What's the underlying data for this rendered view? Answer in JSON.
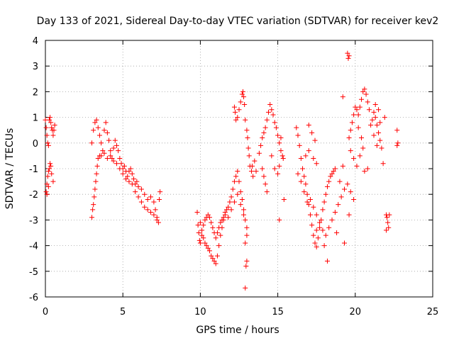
{
  "chart_data": {
    "type": "scatter",
    "title": "Day 133 of 2021, Sidereal Day-to-day VTEC variation (SDTVAR) for receiver kev2",
    "xlabel": "GPS time / hours",
    "ylabel": "SDTVAR / TECUs",
    "xlim": [
      0,
      25
    ],
    "ylim": [
      -6,
      4
    ],
    "xticks": [
      "0",
      "5",
      "10",
      "15",
      "20",
      "25"
    ],
    "yticks": [
      "-6",
      "-5",
      "-4",
      "-3",
      "-2",
      "-1",
      "0",
      "1",
      "2",
      "3",
      "4"
    ],
    "grid": true,
    "marker": "+",
    "color": "#ff0000",
    "series": [
      {
        "name": "SDTVAR",
        "points": [
          [
            0.0,
            0.9
          ],
          [
            0.05,
            0.6
          ],
          [
            0.1,
            0.3
          ],
          [
            0.15,
            0.0
          ],
          [
            0.2,
            -0.1
          ],
          [
            0.25,
            0.9
          ],
          [
            0.3,
            1.0
          ],
          [
            0.35,
            0.8
          ],
          [
            0.4,
            0.6
          ],
          [
            0.45,
            0.5
          ],
          [
            0.5,
            0.3
          ],
          [
            0.55,
            0.5
          ],
          [
            0.6,
            0.7
          ],
          [
            0.05,
            -1.9
          ],
          [
            0.1,
            -1.6
          ],
          [
            0.15,
            -1.3
          ],
          [
            0.2,
            -1.1
          ],
          [
            0.25,
            -1.0
          ],
          [
            0.3,
            -0.8
          ],
          [
            0.35,
            -0.9
          ],
          [
            0.4,
            -1.2
          ],
          [
            0.5,
            -1.5
          ],
          [
            0.1,
            -2.0
          ],
          [
            0.2,
            -1.7
          ],
          [
            3.0,
            0.0
          ],
          [
            3.1,
            0.5
          ],
          [
            3.2,
            0.8
          ],
          [
            3.3,
            0.9
          ],
          [
            3.4,
            0.6
          ],
          [
            3.5,
            0.3
          ],
          [
            3.6,
            0.0
          ],
          [
            3.7,
            -0.3
          ],
          [
            3.8,
            0.5
          ],
          [
            3.9,
            0.8
          ],
          [
            4.0,
            0.4
          ],
          [
            4.1,
            0.1
          ],
          [
            4.2,
            -0.3
          ],
          [
            4.3,
            -0.6
          ],
          [
            4.4,
            -0.2
          ],
          [
            4.5,
            0.1
          ],
          [
            4.6,
            -0.1
          ],
          [
            4.7,
            -0.3
          ],
          [
            4.8,
            -0.6
          ],
          [
            4.9,
            -0.8
          ],
          [
            5.0,
            -1.0
          ],
          [
            5.1,
            -0.9
          ],
          [
            5.2,
            -1.1
          ],
          [
            5.3,
            -1.3
          ],
          [
            5.4,
            -1.1
          ],
          [
            5.5,
            -1.0
          ],
          [
            5.6,
            -1.2
          ],
          [
            5.7,
            -1.4
          ],
          [
            5.8,
            -1.6
          ],
          [
            5.9,
            -1.5
          ],
          [
            6.0,
            -1.7
          ],
          [
            6.2,
            -1.8
          ],
          [
            6.4,
            -2.0
          ],
          [
            6.6,
            -2.2
          ],
          [
            6.8,
            -2.1
          ],
          [
            7.0,
            -2.3
          ],
          [
            7.1,
            -2.6
          ],
          [
            7.2,
            -2.9
          ],
          [
            7.3,
            -3.1
          ],
          [
            7.35,
            -2.2
          ],
          [
            7.4,
            -1.9
          ],
          [
            3.0,
            -2.9
          ],
          [
            3.05,
            -2.6
          ],
          [
            3.1,
            -2.4
          ],
          [
            3.15,
            -2.1
          ],
          [
            3.2,
            -1.8
          ],
          [
            3.25,
            -1.5
          ],
          [
            3.3,
            -1.2
          ],
          [
            3.35,
            -0.9
          ],
          [
            3.4,
            -0.6
          ],
          [
            3.5,
            -0.5
          ],
          [
            3.6,
            -0.5
          ],
          [
            3.8,
            -0.4
          ],
          [
            4.0,
            -0.6
          ],
          [
            4.2,
            -0.5
          ],
          [
            4.4,
            -0.7
          ],
          [
            4.6,
            -0.8
          ],
          [
            4.8,
            -1.0
          ],
          [
            5.0,
            -1.2
          ],
          [
            5.2,
            -1.4
          ],
          [
            5.4,
            -1.5
          ],
          [
            5.6,
            -1.6
          ],
          [
            5.8,
            -1.9
          ],
          [
            6.0,
            -2.1
          ],
          [
            6.2,
            -2.3
          ],
          [
            6.4,
            -2.5
          ],
          [
            6.6,
            -2.6
          ],
          [
            6.8,
            -2.7
          ],
          [
            7.0,
            -2.8
          ],
          [
            7.2,
            -3.0
          ],
          [
            9.8,
            -2.7
          ],
          [
            9.85,
            -3.2
          ],
          [
            9.9,
            -3.5
          ],
          [
            9.95,
            -3.8
          ],
          [
            10.0,
            -3.1
          ],
          [
            10.1,
            -3.4
          ],
          [
            10.2,
            -3.7
          ],
          [
            10.3,
            -3.9
          ],
          [
            10.4,
            -4.0
          ],
          [
            10.5,
            -4.1
          ],
          [
            10.6,
            -4.2
          ],
          [
            10.7,
            -4.4
          ],
          [
            10.8,
            -4.5
          ],
          [
            10.9,
            -4.6
          ],
          [
            11.0,
            -4.7
          ],
          [
            11.1,
            -4.4
          ],
          [
            11.2,
            -4.0
          ],
          [
            11.3,
            -3.6
          ],
          [
            11.4,
            -3.3
          ],
          [
            11.5,
            -3.0
          ],
          [
            11.6,
            -2.8
          ],
          [
            11.7,
            -2.6
          ],
          [
            11.8,
            -2.5
          ],
          [
            11.9,
            -2.3
          ],
          [
            12.0,
            -2.1
          ],
          [
            12.1,
            -1.8
          ],
          [
            12.2,
            -1.5
          ],
          [
            12.3,
            -1.3
          ],
          [
            12.4,
            -1.1
          ],
          [
            12.5,
            -1.5
          ],
          [
            12.6,
            -1.9
          ],
          [
            12.7,
            -2.2
          ],
          [
            12.8,
            -2.6
          ],
          [
            12.9,
            -3.0
          ],
          [
            13.0,
            -3.3
          ],
          [
            10.0,
            -3.9
          ],
          [
            10.1,
            -3.6
          ],
          [
            10.2,
            -3.2
          ],
          [
            10.3,
            -3.0
          ],
          [
            10.4,
            -2.9
          ],
          [
            10.5,
            -2.8
          ],
          [
            10.6,
            -2.9
          ],
          [
            10.7,
            -3.1
          ],
          [
            10.8,
            -3.3
          ],
          [
            10.9,
            -3.5
          ],
          [
            11.0,
            -3.7
          ],
          [
            11.1,
            -3.5
          ],
          [
            11.2,
            -3.3
          ],
          [
            11.3,
            -3.1
          ],
          [
            11.4,
            -3.0
          ],
          [
            11.5,
            -2.9
          ],
          [
            11.6,
            -2.7
          ],
          [
            11.8,
            -2.9
          ],
          [
            12.0,
            -2.6
          ],
          [
            12.2,
            -2.3
          ],
          [
            12.4,
            -2.0
          ],
          [
            12.6,
            -2.4
          ],
          [
            12.8,
            -2.8
          ],
          [
            12.9,
            -5.65
          ],
          [
            12.95,
            -4.8
          ],
          [
            13.0,
            -4.6
          ],
          [
            12.9,
            -3.9
          ],
          [
            13.0,
            -3.6
          ],
          [
            12.2,
            1.4
          ],
          [
            12.25,
            1.2
          ],
          [
            12.3,
            0.9
          ],
          [
            12.4,
            1.0
          ],
          [
            12.5,
            1.3
          ],
          [
            12.6,
            1.6
          ],
          [
            12.7,
            1.9
          ],
          [
            12.75,
            2.0
          ],
          [
            12.8,
            1.8
          ],
          [
            12.85,
            1.5
          ],
          [
            12.9,
            0.9
          ],
          [
            13.0,
            0.5
          ],
          [
            13.05,
            0.2
          ],
          [
            13.1,
            -0.2
          ],
          [
            13.15,
            -0.5
          ],
          [
            13.2,
            -0.9
          ],
          [
            13.3,
            -1.1
          ],
          [
            13.35,
            -0.9
          ],
          [
            13.4,
            -1.3
          ],
          [
            13.5,
            -0.7
          ],
          [
            13.6,
            -1.1
          ],
          [
            13.8,
            -0.4
          ],
          [
            13.9,
            -0.1
          ],
          [
            14.0,
            0.2
          ],
          [
            14.1,
            0.4
          ],
          [
            14.2,
            0.6
          ],
          [
            14.3,
            0.9
          ],
          [
            14.4,
            1.2
          ],
          [
            14.5,
            1.5
          ],
          [
            14.6,
            1.3
          ],
          [
            14.7,
            1.1
          ],
          [
            14.8,
            0.8
          ],
          [
            14.9,
            0.6
          ],
          [
            15.0,
            0.3
          ],
          [
            15.1,
            0.0
          ],
          [
            15.2,
            -0.3
          ],
          [
            15.3,
            -0.5
          ],
          [
            15.35,
            -0.6
          ],
          [
            14.0,
            -1.0
          ],
          [
            14.1,
            -1.3
          ],
          [
            14.2,
            -1.6
          ],
          [
            14.3,
            -1.9
          ],
          [
            14.6,
            -0.5
          ],
          [
            14.8,
            -1.0
          ],
          [
            15.0,
            -1.2
          ],
          [
            15.1,
            -0.9
          ],
          [
            15.2,
            0.2
          ],
          [
            15.4,
            -2.2
          ],
          [
            15.1,
            -3.0
          ],
          [
            16.2,
            0.6
          ],
          [
            16.3,
            0.3
          ],
          [
            16.4,
            -0.1
          ],
          [
            16.5,
            -0.6
          ],
          [
            16.6,
            -1.0
          ],
          [
            16.7,
            -1.3
          ],
          [
            16.8,
            -1.6
          ],
          [
            16.9,
            -2.0
          ],
          [
            17.0,
            -2.4
          ],
          [
            17.1,
            -2.8
          ],
          [
            17.2,
            -3.2
          ],
          [
            17.3,
            -3.6
          ],
          [
            17.4,
            -3.9
          ],
          [
            17.5,
            -4.05
          ],
          [
            17.6,
            -3.7
          ],
          [
            17.7,
            -3.3
          ],
          [
            17.8,
            -3.0
          ],
          [
            17.9,
            -2.6
          ],
          [
            18.0,
            -2.3
          ],
          [
            18.1,
            -2.0
          ],
          [
            18.2,
            -1.7
          ],
          [
            18.3,
            -1.5
          ],
          [
            18.4,
            -1.3
          ],
          [
            18.5,
            -1.2
          ],
          [
            18.6,
            -1.1
          ],
          [
            16.3,
            -1.2
          ],
          [
            16.5,
            -1.5
          ],
          [
            16.7,
            -1.9
          ],
          [
            16.9,
            -2.3
          ],
          [
            17.1,
            -2.2
          ],
          [
            17.3,
            -2.5
          ],
          [
            17.5,
            -2.8
          ],
          [
            17.7,
            -3.1
          ],
          [
            17.9,
            -3.4
          ],
          [
            18.1,
            -3.6
          ],
          [
            18.3,
            -3.3
          ],
          [
            18.5,
            -3.0
          ],
          [
            18.7,
            -2.7
          ],
          [
            18.9,
            -2.4
          ],
          [
            19.1,
            -2.1
          ],
          [
            19.3,
            -1.8
          ],
          [
            19.5,
            -1.6
          ],
          [
            19.7,
            -1.9
          ],
          [
            19.9,
            -2.2
          ],
          [
            18.2,
            -4.6
          ],
          [
            18.0,
            -4.0
          ],
          [
            17.5,
            -3.4
          ],
          [
            18.8,
            -3.5
          ],
          [
            19.3,
            -3.9
          ],
          [
            19.6,
            -2.8
          ],
          [
            19.0,
            -1.5
          ],
          [
            18.7,
            -1.0
          ],
          [
            19.2,
            -0.9
          ],
          [
            17.0,
            0.7
          ],
          [
            17.2,
            0.4
          ],
          [
            17.4,
            0.1
          ],
          [
            17.0,
            -0.3
          ],
          [
            16.8,
            -0.5
          ],
          [
            17.3,
            -0.6
          ],
          [
            17.5,
            -0.8
          ],
          [
            19.5,
            3.5
          ],
          [
            19.55,
            3.3
          ],
          [
            19.6,
            3.4
          ],
          [
            19.2,
            1.8
          ],
          [
            19.6,
            0.2
          ],
          [
            19.7,
            0.5
          ],
          [
            19.8,
            0.8
          ],
          [
            19.9,
            1.1
          ],
          [
            20.0,
            1.4
          ],
          [
            20.1,
            1.3
          ],
          [
            20.2,
            1.1
          ],
          [
            20.3,
            1.4
          ],
          [
            20.4,
            1.7
          ],
          [
            20.5,
            2.0
          ],
          [
            20.6,
            2.1
          ],
          [
            20.7,
            1.9
          ],
          [
            20.8,
            1.6
          ],
          [
            20.9,
            1.3
          ],
          [
            19.7,
            -0.3
          ],
          [
            19.9,
            -0.6
          ],
          [
            20.1,
            -0.9
          ],
          [
            20.3,
            -0.5
          ],
          [
            20.5,
            -0.2
          ],
          [
            20.6,
            -1.1
          ],
          [
            20.8,
            -1.0
          ],
          [
            20.2,
            0.6
          ],
          [
            20.4,
            0.2
          ],
          [
            21.0,
            0.7
          ],
          [
            21.1,
            0.9
          ],
          [
            21.2,
            1.2
          ],
          [
            21.3,
            1.0
          ],
          [
            21.4,
            0.7
          ],
          [
            21.5,
            0.4
          ],
          [
            21.6,
            0.1
          ],
          [
            21.7,
            -0.2
          ],
          [
            21.3,
            1.5
          ],
          [
            21.5,
            1.3
          ],
          [
            21.6,
            0.8
          ],
          [
            21.2,
            0.3
          ],
          [
            21.4,
            -0.1
          ],
          [
            21.8,
            -0.8
          ],
          [
            21.9,
            1.0
          ],
          [
            22.0,
            -2.8
          ],
          [
            22.05,
            -2.9
          ],
          [
            22.1,
            -3.1
          ],
          [
            22.15,
            -3.3
          ],
          [
            22.2,
            -2.8
          ],
          [
            22.0,
            -3.4
          ],
          [
            22.7,
            0.5
          ],
          [
            22.75,
            0.0
          ],
          [
            22.7,
            -0.1
          ]
        ]
      }
    ]
  }
}
